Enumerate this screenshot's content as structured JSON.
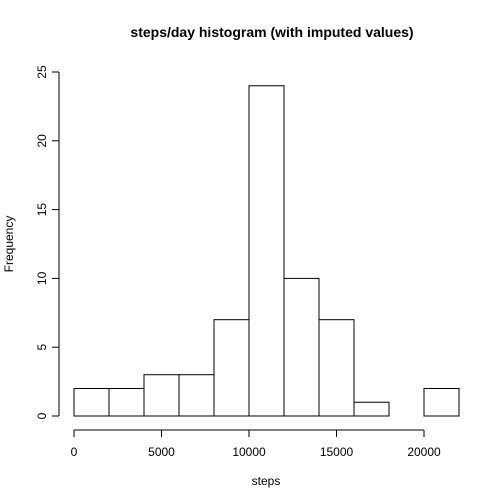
{
  "chart_data": {
    "type": "bar",
    "title": "steps/day histogram (with imputed values)",
    "xlabel": "steps",
    "ylabel": "Frequency",
    "bin_edges": [
      0,
      2000,
      4000,
      6000,
      8000,
      10000,
      12000,
      14000,
      16000,
      18000,
      20000,
      22000
    ],
    "counts": [
      2,
      2,
      3,
      3,
      7,
      24,
      10,
      7,
      1,
      0,
      2
    ],
    "xlim": [
      0,
      22000
    ],
    "ylim": [
      0,
      25
    ],
    "x_ticks": [
      0,
      5000,
      10000,
      15000,
      20000
    ],
    "y_ticks": [
      0,
      5,
      10,
      15,
      20,
      25
    ],
    "grid": false,
    "legend": "none",
    "colors": {
      "bar_fill": "#ffffff",
      "bar_stroke": "#000000"
    }
  }
}
